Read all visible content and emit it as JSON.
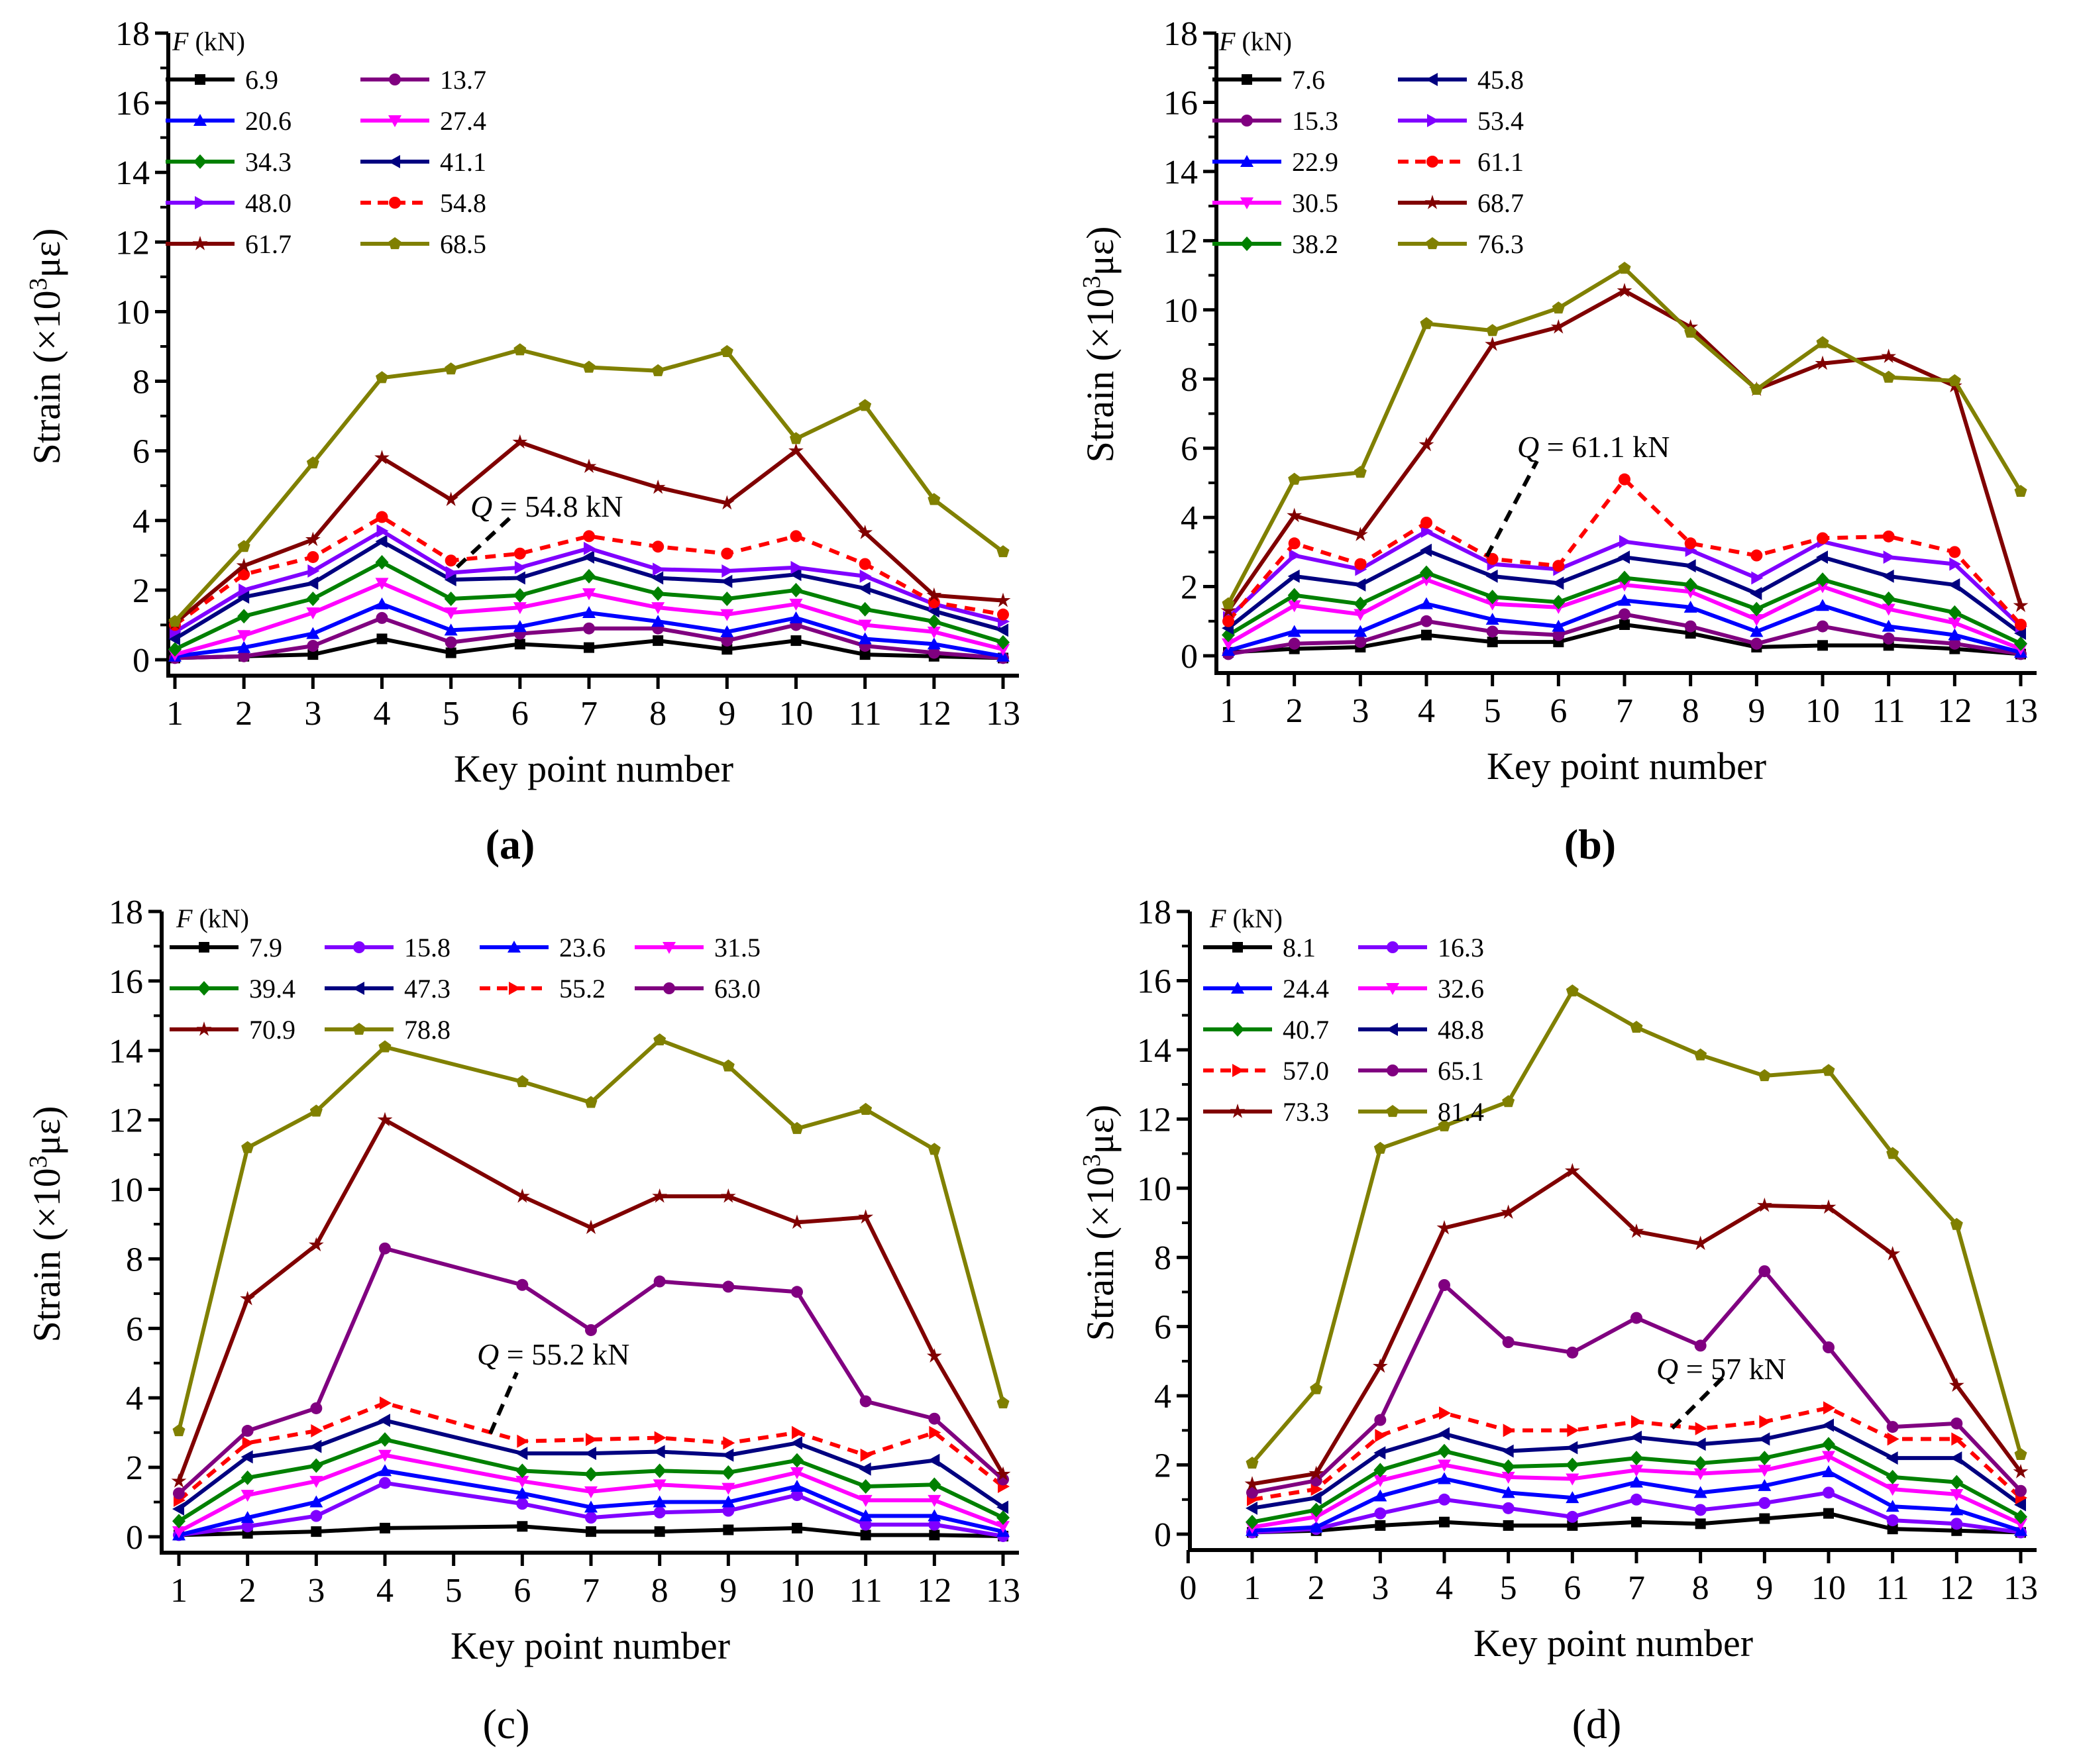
{
  "chart_data": [
    {
      "type": "line",
      "panel_label": "(a)",
      "panel_label_bold": true,
      "xlabel": "Key point number",
      "ylabel": "Strain (×10³με)",
      "xlim": [
        1,
        13
      ],
      "xticks": [
        1,
        2,
        3,
        4,
        5,
        6,
        7,
        8,
        9,
        10,
        11,
        12,
        13
      ],
      "ylim": [
        0,
        18
      ],
      "yticks": [
        0,
        2,
        4,
        6,
        8,
        10,
        12,
        14,
        16,
        18
      ],
      "grid": false,
      "legend": {
        "title": "F (kN)",
        "placement": "top-left",
        "columns": 2,
        "order": "row"
      },
      "annotation": "Q = 54.8 kN",
      "x": [
        1,
        2,
        3,
        4,
        5,
        6,
        7,
        8,
        9,
        10,
        11,
        12,
        13
      ],
      "series": [
        {
          "name": "6.9",
          "color": "#000000",
          "marker": "square",
          "values": [
            0.05,
            0.1,
            0.15,
            0.6,
            0.2,
            0.45,
            0.35,
            0.55,
            0.3,
            0.55,
            0.15,
            0.1,
            0.05
          ]
        },
        {
          "name": "13.7",
          "color": "#800080",
          "marker": "circle",
          "values": [
            0.05,
            0.1,
            0.4,
            1.2,
            0.5,
            0.75,
            0.9,
            0.9,
            0.55,
            1.0,
            0.4,
            0.2,
            0.05
          ]
        },
        {
          "name": "20.6",
          "color": "#0000ff",
          "marker": "triangle-up",
          "values": [
            0.1,
            0.35,
            0.75,
            1.6,
            0.85,
            0.95,
            1.35,
            1.1,
            0.8,
            1.2,
            0.6,
            0.45,
            0.1
          ]
        },
        {
          "name": "27.4",
          "color": "#ff00ff",
          "marker": "triangle-down",
          "values": [
            0.15,
            0.7,
            1.35,
            2.2,
            1.35,
            1.5,
            1.9,
            1.5,
            1.3,
            1.6,
            1.0,
            0.8,
            0.3
          ]
        },
        {
          "name": "34.3",
          "color": "#008000",
          "marker": "diamond",
          "values": [
            0.3,
            1.25,
            1.75,
            2.8,
            1.75,
            1.85,
            2.4,
            1.9,
            1.75,
            2.0,
            1.45,
            1.1,
            0.5
          ]
        },
        {
          "name": "41.1",
          "color": "#000080",
          "marker": "triangle-left",
          "values": [
            0.6,
            1.8,
            2.2,
            3.4,
            2.3,
            2.35,
            2.95,
            2.35,
            2.25,
            2.45,
            2.05,
            1.4,
            0.85
          ]
        },
        {
          "name": "48.0",
          "color": "#8000ff",
          "marker": "triangle-right",
          "values": [
            0.8,
            2.0,
            2.55,
            3.7,
            2.5,
            2.65,
            3.2,
            2.6,
            2.55,
            2.65,
            2.4,
            1.6,
            1.1
          ]
        },
        {
          "name": "54.8",
          "color": "#ff0000",
          "marker": "circle",
          "dashed": true,
          "values": [
            1.0,
            2.45,
            2.95,
            4.1,
            2.85,
            3.05,
            3.55,
            3.25,
            3.05,
            3.55,
            2.75,
            1.65,
            1.3
          ]
        },
        {
          "name": "61.7",
          "color": "#800000",
          "marker": "star",
          "values": [
            1.05,
            2.7,
            3.45,
            5.8,
            4.6,
            6.25,
            5.55,
            4.95,
            4.5,
            6.0,
            3.65,
            1.85,
            1.7
          ]
        },
        {
          "name": "68.5",
          "color": "#808000",
          "marker": "pentagon",
          "values": [
            1.1,
            3.25,
            5.65,
            8.1,
            8.35,
            8.9,
            8.4,
            8.3,
            8.85,
            6.35,
            7.3,
            4.6,
            3.1
          ]
        }
      ]
    },
    {
      "type": "line",
      "panel_label": "(b)",
      "panel_label_bold": true,
      "xlabel": "Key point number",
      "ylabel": "Strain (×10³με)",
      "xlim": [
        1,
        13
      ],
      "xticks": [
        1,
        2,
        3,
        4,
        5,
        6,
        7,
        8,
        9,
        10,
        11,
        12,
        13
      ],
      "ylim": [
        0,
        18
      ],
      "yticks": [
        0,
        2,
        4,
        6,
        8,
        10,
        12,
        14,
        16,
        18
      ],
      "grid": false,
      "legend": {
        "title": "F (kN)",
        "placement": "top-left",
        "columns": 2,
        "order": "column"
      },
      "annotation": "Q = 61.1 kN",
      "x": [
        1,
        2,
        3,
        4,
        5,
        6,
        7,
        8,
        9,
        10,
        11,
        12,
        13
      ],
      "series": [
        {
          "name": "7.6",
          "color": "#000000",
          "marker": "square",
          "values": [
            0.1,
            0.2,
            0.25,
            0.6,
            0.4,
            0.4,
            0.9,
            0.65,
            0.25,
            0.3,
            0.3,
            0.2,
            0.05
          ]
        },
        {
          "name": "15.3",
          "color": "#800080",
          "marker": "circle",
          "values": [
            0.05,
            0.35,
            0.4,
            1.0,
            0.7,
            0.6,
            1.2,
            0.85,
            0.35,
            0.85,
            0.5,
            0.35,
            0.05
          ]
        },
        {
          "name": "22.9",
          "color": "#0000ff",
          "marker": "triangle-up",
          "values": [
            0.15,
            0.7,
            0.7,
            1.5,
            1.05,
            0.85,
            1.6,
            1.4,
            0.7,
            1.45,
            0.85,
            0.6,
            0.1
          ]
        },
        {
          "name": "30.5",
          "color": "#ff00ff",
          "marker": "triangle-down",
          "values": [
            0.35,
            1.45,
            1.2,
            2.2,
            1.5,
            1.4,
            2.05,
            1.85,
            1.05,
            2.0,
            1.35,
            0.95,
            0.2
          ]
        },
        {
          "name": "38.2",
          "color": "#008000",
          "marker": "diamond",
          "values": [
            0.6,
            1.75,
            1.5,
            2.4,
            1.7,
            1.55,
            2.25,
            2.05,
            1.35,
            2.2,
            1.65,
            1.25,
            0.35
          ]
        },
        {
          "name": "45.8",
          "color": "#000080",
          "marker": "triangle-left",
          "values": [
            0.8,
            2.3,
            2.05,
            3.05,
            2.3,
            2.1,
            2.85,
            2.6,
            1.8,
            2.85,
            2.3,
            2.05,
            0.65
          ]
        },
        {
          "name": "53.4",
          "color": "#8000ff",
          "marker": "triangle-right",
          "values": [
            1.1,
            2.9,
            2.5,
            3.6,
            2.65,
            2.5,
            3.3,
            3.05,
            2.25,
            3.3,
            2.85,
            2.65,
            0.85
          ]
        },
        {
          "name": "61.1",
          "color": "#ff0000",
          "marker": "circle",
          "dashed": true,
          "values": [
            1.0,
            3.25,
            2.65,
            3.85,
            2.8,
            2.6,
            5.1,
            3.25,
            2.9,
            3.4,
            3.45,
            3.0,
            0.9
          ]
        },
        {
          "name": "68.7",
          "color": "#800000",
          "marker": "star",
          "values": [
            1.3,
            4.05,
            3.5,
            6.1,
            9.0,
            9.5,
            10.55,
            9.5,
            7.7,
            8.45,
            8.65,
            7.8,
            1.45
          ]
        },
        {
          "name": "76.3",
          "color": "#808000",
          "marker": "pentagon",
          "values": [
            1.5,
            5.1,
            5.3,
            9.6,
            9.4,
            10.05,
            11.2,
            9.35,
            7.7,
            9.05,
            8.05,
            7.95,
            4.75
          ]
        }
      ]
    },
    {
      "type": "line",
      "panel_label": "(c)",
      "panel_label_bold": false,
      "xlabel": "Key point number",
      "ylabel": "Strain (×10³με)",
      "xlim": [
        1,
        13
      ],
      "xticks": [
        1,
        2,
        3,
        4,
        5,
        6,
        7,
        8,
        9,
        10,
        11,
        12,
        13
      ],
      "ylim": [
        0,
        18
      ],
      "yticks": [
        0,
        2,
        4,
        6,
        8,
        10,
        12,
        14,
        16,
        18
      ],
      "grid": false,
      "legend": {
        "title": "F (kN)",
        "placement": "top-left",
        "columns": 4,
        "order": "row"
      },
      "annotation": "Q = 55.2 kN",
      "x": [
        1,
        2,
        3,
        4,
        5,
        6,
        7,
        8,
        9,
        10,
        11,
        12,
        13
      ],
      "series": [
        {
          "name": "7.9",
          "color": "#000000",
          "marker": "square",
          "values": [
            0.05,
            0.1,
            0.15,
            0.25,
            null,
            0.3,
            0.15,
            0.15,
            0.2,
            0.25,
            0.05,
            0.05,
            0.02
          ]
        },
        {
          "name": "15.8",
          "color": "#8000ff",
          "marker": "circle",
          "values": [
            0.05,
            0.3,
            0.6,
            1.55,
            null,
            0.95,
            0.55,
            0.7,
            0.75,
            1.2,
            0.35,
            0.35,
            0.02
          ]
        },
        {
          "name": "23.6",
          "color": "#0000ff",
          "marker": "triangle-up",
          "values": [
            0.05,
            0.55,
            1.0,
            1.9,
            null,
            1.25,
            0.85,
            1.0,
            1.0,
            1.45,
            0.6,
            0.6,
            0.15
          ]
        },
        {
          "name": "31.5",
          "color": "#ff00ff",
          "marker": "triangle-down",
          "values": [
            0.15,
            1.2,
            1.6,
            2.35,
            null,
            1.6,
            1.3,
            1.5,
            1.4,
            1.85,
            1.05,
            1.05,
            0.3
          ]
        },
        {
          "name": "39.4",
          "color": "#008000",
          "marker": "diamond",
          "values": [
            0.45,
            1.7,
            2.05,
            2.8,
            null,
            1.9,
            1.8,
            1.9,
            1.85,
            2.2,
            1.45,
            1.5,
            0.55
          ]
        },
        {
          "name": "47.3",
          "color": "#000080",
          "marker": "triangle-left",
          "values": [
            0.8,
            2.3,
            2.6,
            3.35,
            null,
            2.4,
            2.4,
            2.45,
            2.35,
            2.7,
            1.95,
            2.2,
            0.85
          ]
        },
        {
          "name": "55.2",
          "color": "#ff0000",
          "marker": "triangle-right",
          "dashed": true,
          "values": [
            1.05,
            2.7,
            3.05,
            3.85,
            null,
            2.75,
            2.8,
            2.85,
            2.7,
            3.0,
            2.35,
            3.0,
            1.45
          ]
        },
        {
          "name": "63.0",
          "color": "#800080",
          "marker": "circle",
          "values": [
            1.25,
            3.05,
            3.7,
            8.3,
            null,
            7.25,
            5.95,
            7.35,
            7.2,
            7.05,
            3.9,
            3.4,
            1.65
          ]
        },
        {
          "name": "70.9",
          "color": "#800000",
          "marker": "star",
          "values": [
            1.6,
            6.85,
            8.4,
            12.0,
            null,
            9.8,
            8.9,
            9.8,
            9.8,
            9.05,
            9.2,
            5.2,
            1.8
          ]
        },
        {
          "name": "78.8",
          "color": "#808000",
          "marker": "pentagon",
          "values": [
            3.05,
            11.2,
            12.25,
            14.1,
            null,
            13.1,
            12.5,
            14.3,
            13.55,
            11.75,
            12.3,
            11.15,
            3.85
          ]
        }
      ]
    },
    {
      "type": "line",
      "panel_label": "(d)",
      "panel_label_bold": false,
      "xlabel": "Key point number",
      "ylabel": "Strain (×10³με)",
      "xlim": [
        0,
        13
      ],
      "xticks": [
        0,
        1,
        2,
        3,
        4,
        5,
        6,
        7,
        8,
        9,
        10,
        11,
        12,
        13
      ],
      "ylim": [
        0,
        18
      ],
      "yticks": [
        0,
        2,
        4,
        6,
        8,
        10,
        12,
        14,
        16,
        18
      ],
      "grid": false,
      "legend": {
        "title": "F (kN)",
        "placement": "top-left",
        "columns": 2,
        "order": "row"
      },
      "annotation": "Q = 57 kN",
      "x": [
        1,
        2,
        3,
        4,
        5,
        6,
        7,
        8,
        9,
        10,
        11,
        12,
        13
      ],
      "series": [
        {
          "name": "8.1",
          "color": "#000000",
          "marker": "square",
          "values": [
            0.05,
            0.1,
            0.25,
            0.35,
            0.25,
            0.25,
            0.35,
            0.3,
            0.45,
            0.6,
            0.15,
            0.1,
            0.05
          ]
        },
        {
          "name": "16.3",
          "color": "#8000ff",
          "marker": "circle",
          "values": [
            0.05,
            0.15,
            0.6,
            1.0,
            0.75,
            0.5,
            1.0,
            0.7,
            0.9,
            1.2,
            0.4,
            0.3,
            0.05
          ]
        },
        {
          "name": "24.4",
          "color": "#0000ff",
          "marker": "triangle-up",
          "values": [
            0.1,
            0.2,
            1.1,
            1.6,
            1.2,
            1.05,
            1.5,
            1.2,
            1.4,
            1.8,
            0.8,
            0.7,
            0.1
          ]
        },
        {
          "name": "32.6",
          "color": "#ff00ff",
          "marker": "triangle-down",
          "values": [
            0.2,
            0.5,
            1.55,
            2.0,
            1.65,
            1.6,
            1.85,
            1.75,
            1.85,
            2.25,
            1.3,
            1.15,
            0.3
          ]
        },
        {
          "name": "40.7",
          "color": "#008000",
          "marker": "diamond",
          "values": [
            0.35,
            0.7,
            1.85,
            2.4,
            1.95,
            2.0,
            2.2,
            2.05,
            2.2,
            2.6,
            1.65,
            1.5,
            0.5
          ]
        },
        {
          "name": "48.8",
          "color": "#000080",
          "marker": "triangle-left",
          "values": [
            0.75,
            1.05,
            2.35,
            2.9,
            2.4,
            2.5,
            2.8,
            2.6,
            2.75,
            3.15,
            2.2,
            2.2,
            0.85
          ]
        },
        {
          "name": "57.0",
          "color": "#ff0000",
          "marker": "triangle-right",
          "dashed": true,
          "values": [
            1.0,
            1.3,
            2.85,
            3.5,
            3.0,
            3.0,
            3.25,
            3.05,
            3.25,
            3.65,
            2.75,
            2.75,
            1.05
          ]
        },
        {
          "name": "65.1",
          "color": "#800080",
          "marker": "circle",
          "values": [
            1.2,
            1.55,
            3.3,
            7.2,
            5.55,
            5.25,
            6.25,
            5.45,
            7.6,
            5.4,
            3.1,
            3.2,
            1.25
          ]
        },
        {
          "name": "73.3",
          "color": "#800000",
          "marker": "star",
          "values": [
            1.45,
            1.75,
            4.85,
            8.85,
            9.3,
            10.5,
            8.75,
            8.4,
            9.5,
            9.45,
            8.1,
            4.3,
            1.8
          ]
        },
        {
          "name": "81.4",
          "color": "#808000",
          "marker": "pentagon",
          "values": [
            2.05,
            4.2,
            11.15,
            11.8,
            12.5,
            15.7,
            14.65,
            13.85,
            13.25,
            13.4,
            11.0,
            8.95,
            2.3
          ]
        }
      ]
    }
  ]
}
